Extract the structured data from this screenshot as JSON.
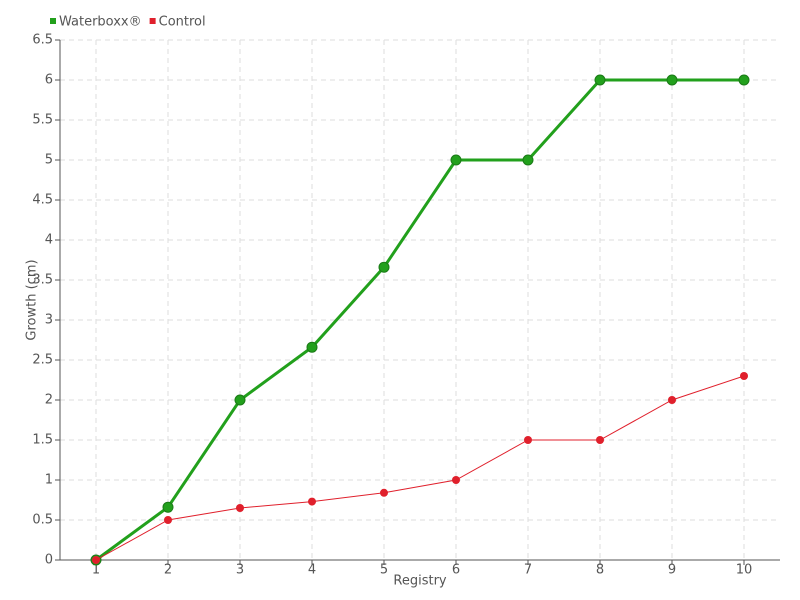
{
  "chart_data": {
    "type": "line",
    "x_label": "Registry",
    "y_label": "Growth (cm)",
    "x": [
      1,
      2,
      3,
      4,
      5,
      6,
      7,
      8,
      9,
      10
    ],
    "series": [
      {
        "name": "Waterboxx®",
        "color": "#22a01c",
        "values": [
          0,
          0.66,
          2,
          2.66,
          3.66,
          5,
          5,
          6,
          6,
          6
        ]
      },
      {
        "name": "Control",
        "color": "#e0202c",
        "values": [
          0,
          0.5,
          0.65,
          0.73,
          0.84,
          1,
          1.5,
          1.5,
          2,
          2.3
        ]
      }
    ],
    "xlim": [
      0.5,
      10.5
    ],
    "xticks": [
      1,
      2,
      3,
      4,
      5,
      6,
      7,
      8,
      9,
      10
    ],
    "ylim": [
      0,
      6.5
    ],
    "yticks": [
      0,
      0.5,
      1,
      1.5,
      2,
      2.5,
      3,
      3.5,
      4,
      4.5,
      5,
      5.5,
      6,
      6.5
    ],
    "grid": true,
    "legend": "top-left"
  }
}
